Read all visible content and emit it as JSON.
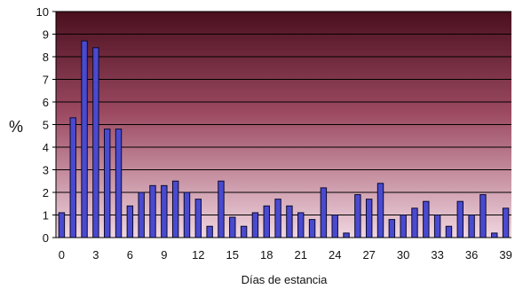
{
  "chart_data": {
    "type": "bar",
    "title": "",
    "xlabel": "Días de estancia",
    "ylabel": "%",
    "ylim": [
      0,
      10
    ],
    "yticks": [
      0,
      1,
      2,
      3,
      4,
      5,
      6,
      7,
      8,
      9,
      10
    ],
    "xticks": [
      0,
      3,
      6,
      9,
      12,
      15,
      18,
      21,
      24,
      27,
      30,
      33,
      36,
      39
    ],
    "grid": true,
    "legend": "none",
    "colors": {
      "bar_fill": "#4a4ad0",
      "bar_edge": "#0a0a30",
      "plot_top": "#4a0f1e",
      "plot_bottom": "#f0d6e0",
      "grid": "#000000"
    },
    "series": [
      {
        "x": [
          0,
          1,
          2,
          3,
          4,
          5,
          6,
          7,
          8,
          9,
          10,
          11,
          12,
          13,
          14,
          15,
          16,
          17,
          18,
          19,
          20,
          21,
          22,
          23,
          24,
          25,
          26,
          27,
          28,
          29,
          30,
          31,
          32,
          33,
          34,
          35,
          36,
          37,
          38,
          39
        ],
        "values": [
          1.1,
          5.3,
          8.7,
          8.4,
          4.8,
          4.8,
          1.4,
          2.0,
          2.3,
          2.3,
          2.5,
          2.0,
          1.7,
          0.5,
          2.5,
          0.9,
          0.5,
          1.1,
          1.4,
          1.7,
          1.4,
          1.1,
          0.8,
          2.2,
          1.0,
          0.2,
          1.9,
          1.7,
          2.4,
          0.8,
          1.0,
          1.3,
          1.6,
          1.0,
          0.5,
          1.6,
          1.0,
          1.9,
          0.2,
          1.3
        ]
      }
    ]
  }
}
